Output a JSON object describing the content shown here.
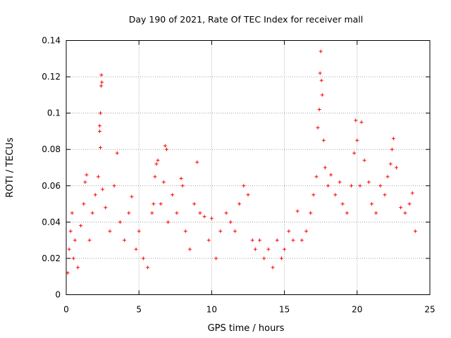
{
  "chart_data": {
    "type": "scatter",
    "title": "Day 190 of 2021, Rate Of TEC Index for receiver mall",
    "xlabel": "GPS time / hours",
    "ylabel": "ROTI / TECUs",
    "xlim": [
      0,
      25
    ],
    "ylim": [
      0,
      0.14
    ],
    "xticks": [
      "0",
      "5",
      "10",
      "15",
      "20",
      "25"
    ],
    "yticks": [
      "0",
      "0.02",
      "0.04",
      "0.06",
      "0.08",
      "0.1",
      "0.12",
      "0.14"
    ],
    "grid": true,
    "marker": "+",
    "color": "#ff0000",
    "series": [
      {
        "name": "ROTI",
        "points": [
          [
            0.1,
            0.012
          ],
          [
            0.2,
            0.025
          ],
          [
            0.3,
            0.035
          ],
          [
            0.4,
            0.045
          ],
          [
            0.5,
            0.02
          ],
          [
            0.6,
            0.03
          ],
          [
            0.8,
            0.015
          ],
          [
            1.0,
            0.038
          ],
          [
            1.2,
            0.05
          ],
          [
            1.3,
            0.062
          ],
          [
            1.4,
            0.066
          ],
          [
            1.6,
            0.03
          ],
          [
            1.8,
            0.045
          ],
          [
            2.0,
            0.055
          ],
          [
            2.2,
            0.065
          ],
          [
            2.3,
            0.09
          ],
          [
            2.35,
            0.1
          ],
          [
            2.4,
            0.115
          ],
          [
            2.42,
            0.121
          ],
          [
            2.45,
            0.117
          ],
          [
            2.3,
            0.093
          ],
          [
            2.35,
            0.081
          ],
          [
            2.5,
            0.058
          ],
          [
            2.7,
            0.048
          ],
          [
            3.0,
            0.035
          ],
          [
            3.3,
            0.06
          ],
          [
            3.5,
            0.078
          ],
          [
            3.7,
            0.04
          ],
          [
            4.0,
            0.03
          ],
          [
            4.3,
            0.045
          ],
          [
            4.5,
            0.054
          ],
          [
            4.8,
            0.025
          ],
          [
            5.0,
            0.035
          ],
          [
            5.3,
            0.02
          ],
          [
            5.6,
            0.015
          ],
          [
            5.9,
            0.045
          ],
          [
            6.0,
            0.05
          ],
          [
            6.1,
            0.065
          ],
          [
            6.2,
            0.072
          ],
          [
            6.3,
            0.074
          ],
          [
            6.5,
            0.05
          ],
          [
            6.7,
            0.062
          ],
          [
            6.8,
            0.082
          ],
          [
            6.9,
            0.08
          ],
          [
            7.0,
            0.04
          ],
          [
            7.3,
            0.055
          ],
          [
            7.6,
            0.045
          ],
          [
            7.9,
            0.064
          ],
          [
            8.0,
            0.06
          ],
          [
            8.2,
            0.035
          ],
          [
            8.5,
            0.025
          ],
          [
            8.8,
            0.05
          ],
          [
            9.0,
            0.073
          ],
          [
            9.2,
            0.045
          ],
          [
            9.5,
            0.043
          ],
          [
            9.8,
            0.03
          ],
          [
            10.0,
            0.042
          ],
          [
            10.3,
            0.02
          ],
          [
            10.6,
            0.035
          ],
          [
            11.0,
            0.045
          ],
          [
            11.3,
            0.04
          ],
          [
            11.6,
            0.035
          ],
          [
            11.9,
            0.05
          ],
          [
            12.2,
            0.06
          ],
          [
            12.5,
            0.055
          ],
          [
            12.8,
            0.03
          ],
          [
            13.0,
            0.025
          ],
          [
            13.3,
            0.03
          ],
          [
            13.6,
            0.02
          ],
          [
            13.9,
            0.025
          ],
          [
            14.2,
            0.015
          ],
          [
            14.5,
            0.03
          ],
          [
            14.8,
            0.02
          ],
          [
            15.0,
            0.025
          ],
          [
            15.3,
            0.035
          ],
          [
            15.6,
            0.03
          ],
          [
            15.9,
            0.046
          ],
          [
            16.2,
            0.03
          ],
          [
            16.5,
            0.035
          ],
          [
            16.8,
            0.045
          ],
          [
            17.0,
            0.055
          ],
          [
            17.2,
            0.065
          ],
          [
            17.3,
            0.092
          ],
          [
            17.4,
            0.102
          ],
          [
            17.45,
            0.122
          ],
          [
            17.5,
            0.134
          ],
          [
            17.55,
            0.118
          ],
          [
            17.6,
            0.11
          ],
          [
            17.7,
            0.085
          ],
          [
            17.8,
            0.07
          ],
          [
            18.0,
            0.06
          ],
          [
            18.2,
            0.066
          ],
          [
            18.5,
            0.055
          ],
          [
            18.8,
            0.062
          ],
          [
            19.0,
            0.05
          ],
          [
            19.3,
            0.045
          ],
          [
            19.6,
            0.06
          ],
          [
            19.8,
            0.078
          ],
          [
            19.9,
            0.096
          ],
          [
            20.0,
            0.085
          ],
          [
            20.2,
            0.06
          ],
          [
            20.3,
            0.095
          ],
          [
            20.5,
            0.074
          ],
          [
            20.8,
            0.062
          ],
          [
            21.0,
            0.05
          ],
          [
            21.3,
            0.045
          ],
          [
            21.6,
            0.06
          ],
          [
            21.9,
            0.055
          ],
          [
            22.1,
            0.065
          ],
          [
            22.3,
            0.072
          ],
          [
            22.4,
            0.08
          ],
          [
            22.5,
            0.086
          ],
          [
            22.7,
            0.07
          ],
          [
            23.0,
            0.048
          ],
          [
            23.3,
            0.045
          ],
          [
            23.6,
            0.05
          ],
          [
            23.8,
            0.056
          ],
          [
            24.0,
            0.035
          ]
        ]
      }
    ]
  }
}
